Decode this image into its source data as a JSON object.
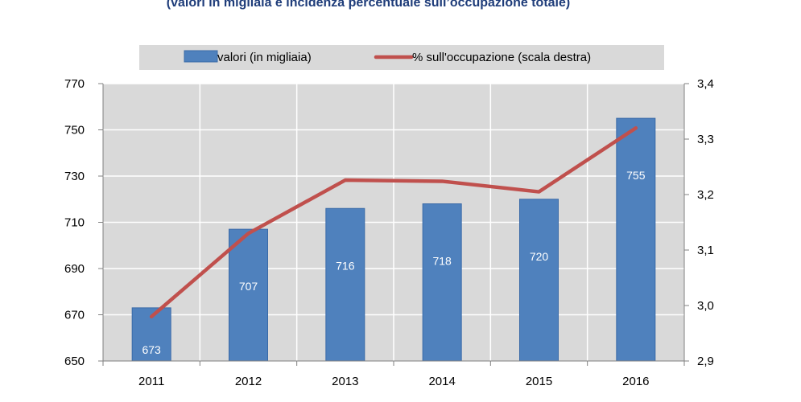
{
  "subtitle": "(valori in migliaia e incidenza percentuale sull’occupazione totale)",
  "chart_data": {
    "type": "bar",
    "categories": [
      "2011",
      "2012",
      "2013",
      "2014",
      "2015",
      "2016"
    ],
    "series": [
      {
        "name": "valori (in migliaia)",
        "type": "bar",
        "axis": "left",
        "color": "#4f81bd",
        "values": [
          673,
          707,
          716,
          718,
          720,
          755
        ],
        "labels": [
          "673",
          "707",
          "716",
          "718",
          "720",
          "755"
        ]
      },
      {
        "name": "% sull'occupazione (scala destra)",
        "type": "line",
        "axis": "right",
        "color": "#c0504d",
        "values": [
          2.98,
          3.13,
          3.226,
          3.224,
          3.205,
          3.32
        ]
      }
    ],
    "ylim": [
      650,
      770
    ],
    "yticks": [
      "650",
      "670",
      "690",
      "710",
      "730",
      "750",
      "770"
    ],
    "y2lim": [
      2.9,
      3.4
    ],
    "y2ticks": [
      "2,9",
      "3,0",
      "3,1",
      "3,2",
      "3,3",
      "3,4"
    ],
    "legend": "top",
    "grid": true
  }
}
